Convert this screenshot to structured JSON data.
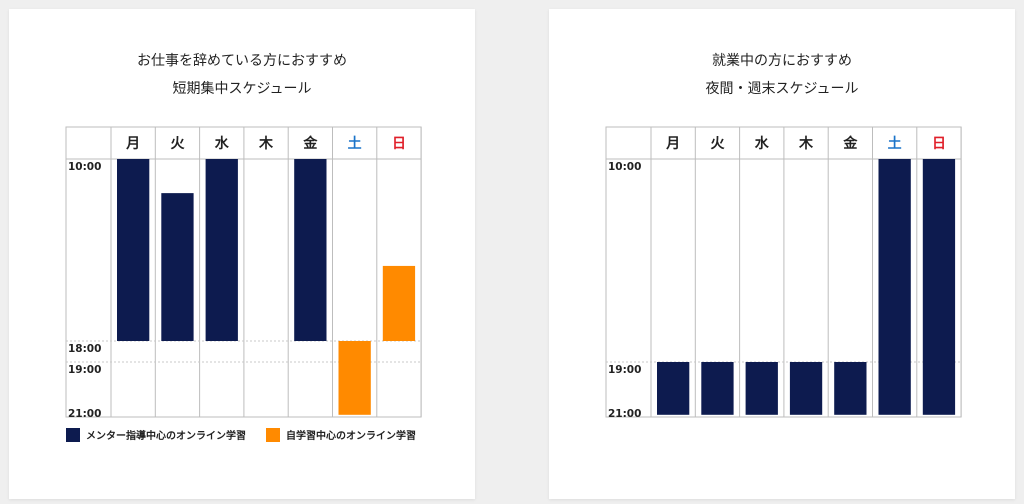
{
  "colors": {
    "mentor": "#0d1b4f",
    "self": "#ff8a00",
    "saturday": "#1a73c9",
    "sunday": "#e0202a",
    "grid": "#bdbdbd",
    "text": "#222222"
  },
  "left": {
    "title_line1": "お仕事を辞めている方におすすめ",
    "title_line2": "短期集中スケジュール",
    "days": [
      "月",
      "火",
      "水",
      "木",
      "金",
      "土",
      "日"
    ],
    "time_labels": [
      "10:00",
      "18:00",
      "19:00",
      "21:00"
    ],
    "bars": [
      {
        "day": 0,
        "start": 10,
        "end": 18,
        "type": "mentor"
      },
      {
        "day": 1,
        "start": 11.5,
        "end": 18,
        "type": "mentor"
      },
      {
        "day": 2,
        "start": 10,
        "end": 18,
        "type": "mentor"
      },
      {
        "day": 4,
        "start": 10,
        "end": 18,
        "type": "mentor"
      },
      {
        "day": 5,
        "start": 18,
        "end": 21.4,
        "type": "self"
      },
      {
        "day": 6,
        "start": 14.7,
        "end": 18,
        "type": "self"
      }
    ],
    "legend": {
      "mentor_label": "メンター指導中心のオンライン学習",
      "self_label": "自学習中心のオンライン学習"
    }
  },
  "right": {
    "title_line1": "就業中の方におすすめ",
    "title_line2": "夜間・週末スケジュール",
    "days": [
      "月",
      "火",
      "水",
      "木",
      "金",
      "土",
      "日"
    ],
    "time_labels": [
      "10:00",
      "19:00",
      "21:00"
    ],
    "bars": [
      {
        "day": 0,
        "start": 19,
        "end": 21.4,
        "type": "mentor"
      },
      {
        "day": 1,
        "start": 19,
        "end": 21.4,
        "type": "mentor"
      },
      {
        "day": 2,
        "start": 19,
        "end": 21.4,
        "type": "mentor"
      },
      {
        "day": 3,
        "start": 19,
        "end": 21.4,
        "type": "mentor"
      },
      {
        "day": 4,
        "start": 19,
        "end": 21.4,
        "type": "mentor"
      },
      {
        "day": 5,
        "start": 10,
        "end": 21.4,
        "type": "mentor"
      },
      {
        "day": 6,
        "start": 10,
        "end": 21.4,
        "type": "mentor"
      }
    ]
  }
}
